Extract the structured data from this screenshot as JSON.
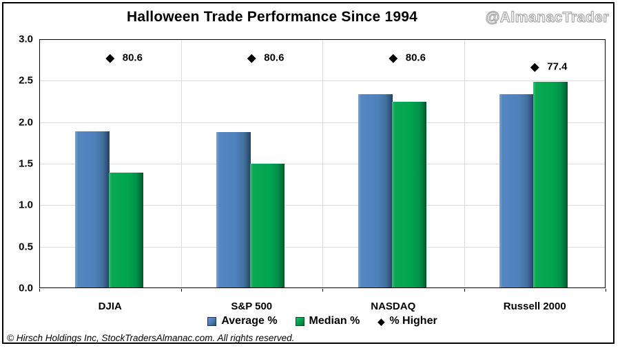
{
  "title": "Halloween Trade Performance Since 1994",
  "watermark": "@AlmanacTrader",
  "footer": "© Hirsch Holdings Inc, StockTradersAlmanac.com. All rights reserved.",
  "legend": [
    {
      "label": "Average %",
      "swatch": "blue-square"
    },
    {
      "label": "Median %",
      "swatch": "green-square"
    },
    {
      "label": "% Higher",
      "swatch": "black-diamond"
    }
  ],
  "colors": {
    "average_bar": "#4F81BD",
    "average_bar_dark_edge": "#223F5C",
    "median_bar": "#00A54D",
    "median_bar_dark_edge": "#005128",
    "marker": "#000000",
    "gridline": "#DCDCDC",
    "plot_border": "#000000",
    "watermark_outline": "#A8A8A8"
  },
  "chart_data": {
    "type": "bar",
    "title": "Halloween Trade Performance Since 1994",
    "categories": [
      "DJIA",
      "S&P 500",
      "NASDAQ",
      "Russell 2000"
    ],
    "series": [
      {
        "name": "Average %",
        "values": [
          1.89,
          1.88,
          2.34,
          2.34
        ]
      },
      {
        "name": "Median %",
        "values": [
          1.39,
          1.5,
          2.25,
          2.49
        ]
      }
    ],
    "markers": {
      "name": "% Higher",
      "values": [
        80.6,
        80.6,
        80.6,
        77.4
      ],
      "labels": [
        "80.6",
        "80.6",
        "80.6",
        "77.4"
      ]
    },
    "xlabel": "",
    "ylabel": "",
    "ylim": [
      0,
      3.0
    ],
    "ytick_step": 0.5,
    "yticks": [
      "0.0",
      "0.5",
      "1.0",
      "1.5",
      "2.0",
      "2.5",
      "3.0"
    ],
    "grid": true,
    "legend_position": "bottom"
  }
}
